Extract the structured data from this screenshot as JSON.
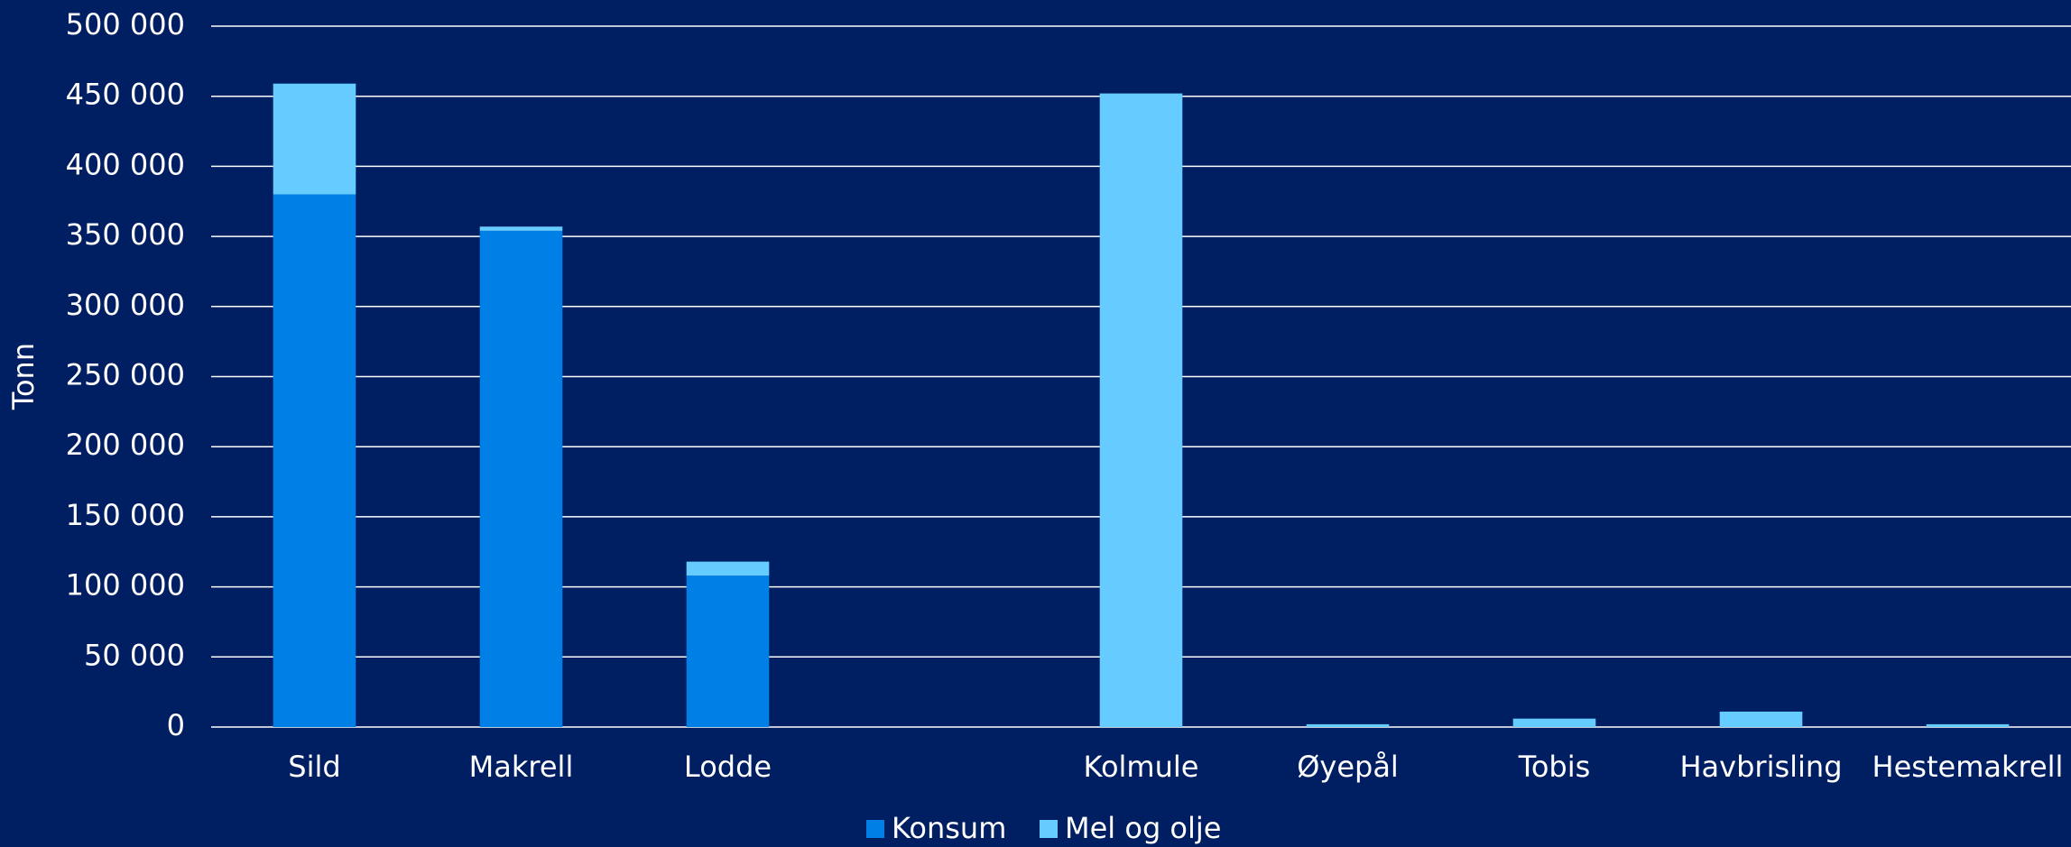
{
  "chart_data": {
    "type": "stacked_bar",
    "y_label": "Tonn",
    "categories": [
      "Sild",
      "Makrell",
      "Lodde",
      null,
      "Kolmule",
      "Øyepål",
      "Tobis",
      "Havbrisling",
      "Hestemakrell"
    ],
    "series": [
      {
        "name": "Konsum",
        "color": "#0080e6",
        "values": [
          380000,
          354000,
          108000,
          null,
          0,
          0,
          0,
          0,
          0
        ]
      },
      {
        "name": "Mel og olje",
        "color": "#66ccff",
        "values": [
          79000,
          3000,
          10000,
          null,
          452000,
          2000,
          6000,
          11000,
          2000
        ]
      }
    ],
    "ylim": [
      0,
      500000
    ],
    "yticks": [
      {
        "value": 0,
        "label": "0"
      },
      {
        "value": 50000,
        "label": "50 000"
      },
      {
        "value": 100000,
        "label": "100 000"
      },
      {
        "value": 150000,
        "label": "150 000"
      },
      {
        "value": 200000,
        "label": "200 000"
      },
      {
        "value": 250000,
        "label": "250 000"
      },
      {
        "value": 300000,
        "label": "300 000"
      },
      {
        "value": 350000,
        "label": "350 000"
      },
      {
        "value": 400000,
        "label": "400 000"
      },
      {
        "value": 450000,
        "label": "450 000"
      },
      {
        "value": 500000,
        "label": "500 000"
      }
    ],
    "grid": true,
    "legend": "bottom"
  }
}
